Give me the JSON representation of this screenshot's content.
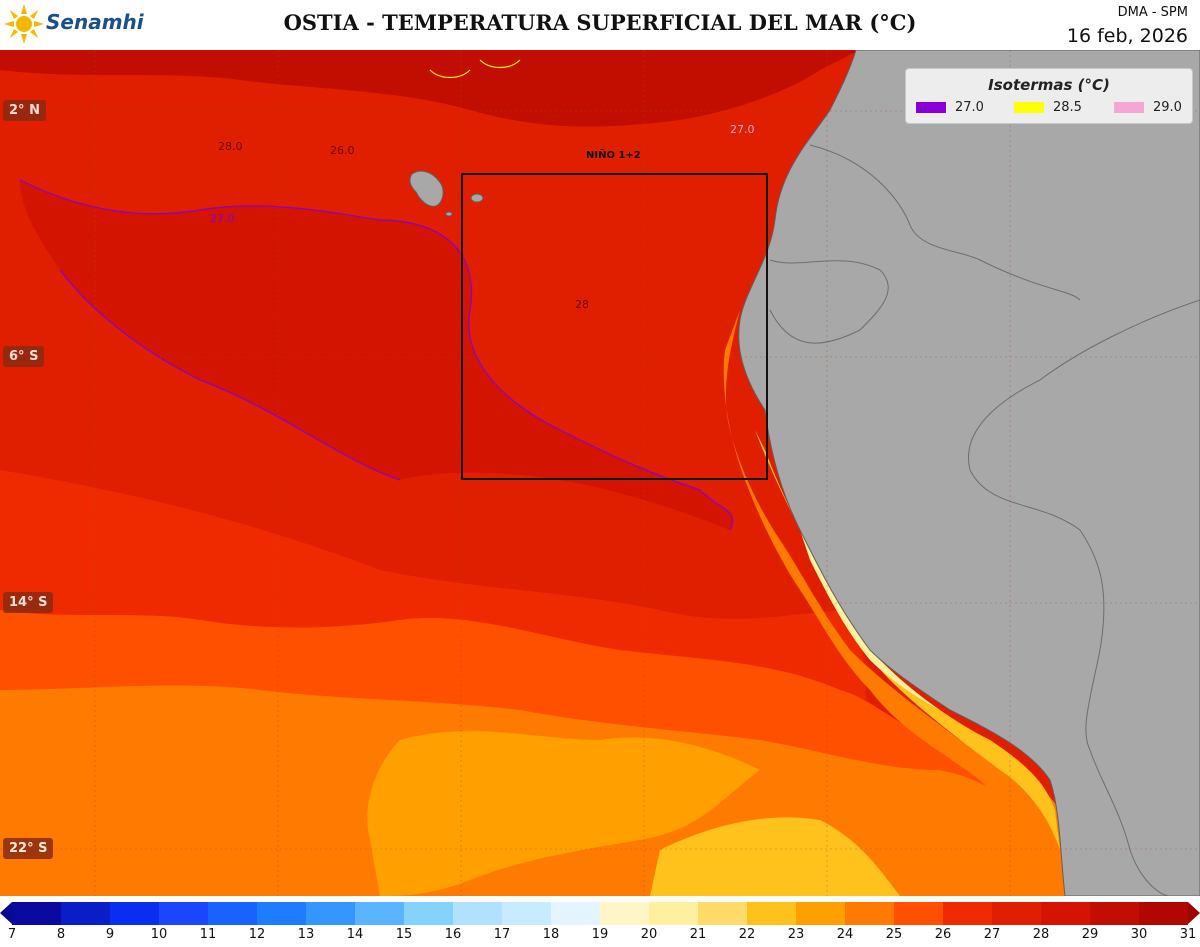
{
  "header": {
    "logo_text": "Senamhi",
    "logo_tagline": "",
    "title": "OSTIA - TEMPERATURA SUPERFICIAL DEL MAR (°C)",
    "org": "DMA - SPM",
    "date": "16 feb, 2026"
  },
  "map": {
    "lat_labels": [
      "2° N",
      "6° S",
      "14° S",
      "22° S"
    ],
    "region_label": "NIÑO 1+2",
    "isoline_labels": [
      "27.0",
      "28.0",
      "26.0",
      "28"
    ],
    "land_color": "#a8a8a8",
    "border_color": "#707070"
  },
  "legend": {
    "title": "Isotermas (°C)",
    "items": [
      {
        "value": "27.0",
        "color": "#8a00d4"
      },
      {
        "value": "28.5",
        "color": "#ffff00"
      },
      {
        "value": "29.0",
        "color": "#f4a7d4"
      }
    ]
  },
  "colorbar": {
    "ticks": [
      "7",
      "8",
      "9",
      "10",
      "11",
      "12",
      "13",
      "14",
      "15",
      "16",
      "17",
      "18",
      "19",
      "20",
      "21",
      "22",
      "23",
      "24",
      "25",
      "26",
      "27",
      "28",
      "29",
      "30",
      "31"
    ],
    "colors": [
      "#0a0aa0",
      "#0a1ec8",
      "#0a2ef0",
      "#1a46ff",
      "#1a62ff",
      "#1e7cff",
      "#3496ff",
      "#5ab4ff",
      "#86d2ff",
      "#b0e2ff",
      "#c8ecff",
      "#e4f5ff",
      "#fff6c8",
      "#fff0a0",
      "#ffdc6a",
      "#ffc21c",
      "#ffa000",
      "#ff7a00",
      "#ff5000",
      "#f02a00",
      "#e01e00",
      "#d21400",
      "#c20e00",
      "#b00800"
    ],
    "arrow_left_color": "#0a0a8c",
    "arrow_right_color": "#9c0600"
  }
}
